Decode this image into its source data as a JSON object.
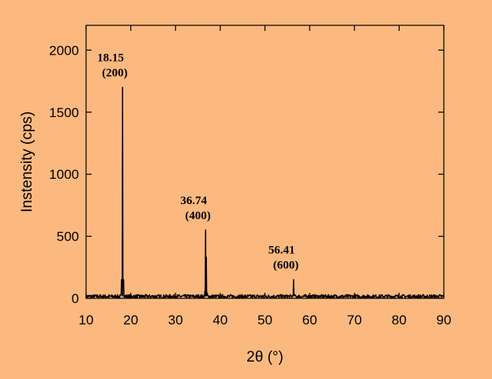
{
  "chart_data": {
    "type": "line",
    "title": "",
    "xlabel": "2θ (°)",
    "ylabel": "Instensity (cps)",
    "xlim": [
      10,
      90
    ],
    "ylim": [
      0,
      2200
    ],
    "xticks": [
      10,
      20,
      30,
      40,
      50,
      60,
      70,
      80,
      90
    ],
    "yticks": [
      0,
      500,
      1000,
      1500,
      2000
    ],
    "grid": false,
    "legend": "none",
    "background": "#fbb97f",
    "line_color": "#000000",
    "baseline": 15,
    "peaks": [
      {
        "x": 18.15,
        "y": 1700,
        "label_value": "18.15",
        "label_hkl": "(200)"
      },
      {
        "x": 36.74,
        "y": 550,
        "label_value": "36.74",
        "label_hkl": "(400)"
      },
      {
        "x": 56.41,
        "y": 150,
        "label_value": "56.41",
        "label_hkl": "(600)"
      }
    ],
    "minor_peaks": [
      {
        "x": 36.9,
        "y": 330
      }
    ]
  }
}
